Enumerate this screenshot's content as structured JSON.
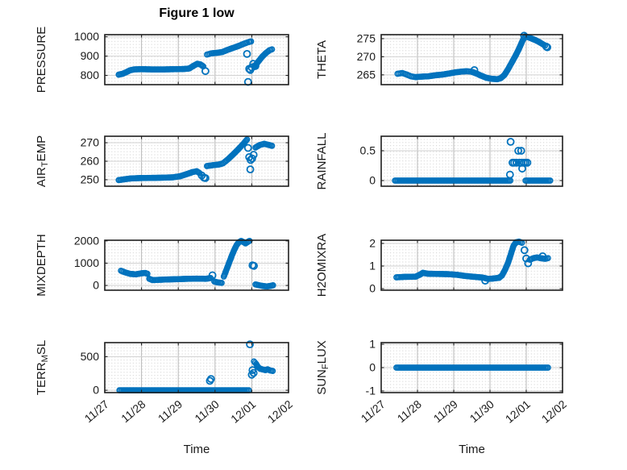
{
  "figure": {
    "title": "Figure 1 low",
    "xlabel": "Time",
    "accent_color": "#0072BD",
    "axis_color": "#1f1f1f",
    "text_color": "#1a1a1a",
    "grid_color_h": "#d2d2d2",
    "grid_color_v": "#b8b8b8",
    "minor_dot_color": "#d8d8d8",
    "x_tick_labels": [
      "11/27",
      "11/28",
      "11/29",
      "11/30",
      "12/01",
      "12/02"
    ],
    "x_tick_values": [
      0,
      1,
      2,
      3,
      4,
      5
    ],
    "xlim": [
      0,
      5
    ]
  },
  "chart_data": [
    {
      "id": "pressure",
      "type": "scatter",
      "ylabel": "PRESSURE",
      "ylabel_parts": [
        {
          "text": "PRESSURE",
          "sub": false
        }
      ],
      "ylim": [
        752,
        1011
      ],
      "yticks": [
        800,
        900,
        1000
      ],
      "ytick_labels": [
        "800",
        "900",
        "1000"
      ],
      "dense_segments": [
        [
          [
            0.38,
            804
          ],
          [
            0.48,
            808
          ],
          [
            0.58,
            816
          ],
          [
            0.68,
            826
          ],
          [
            0.8,
            831
          ],
          [
            1.0,
            832
          ],
          [
            1.3,
            831
          ],
          [
            1.6,
            831
          ],
          [
            1.9,
            832
          ],
          [
            2.15,
            833
          ],
          [
            2.3,
            836
          ],
          [
            2.42,
            850
          ],
          [
            2.52,
            860
          ],
          [
            2.6,
            857
          ],
          [
            2.68,
            847
          ]
        ],
        [
          [
            2.78,
            908
          ],
          [
            2.9,
            914
          ],
          [
            3.05,
            917
          ],
          [
            3.2,
            921
          ],
          [
            3.35,
            933
          ],
          [
            3.5,
            943
          ],
          [
            3.65,
            953
          ],
          [
            3.8,
            965
          ],
          [
            3.92,
            973
          ],
          [
            3.98,
            976
          ]
        ],
        [
          [
            4.07,
            843
          ],
          [
            4.17,
            870
          ],
          [
            4.28,
            896
          ],
          [
            4.38,
            915
          ],
          [
            4.48,
            930
          ],
          [
            4.55,
            935
          ]
        ]
      ],
      "scatter_points": [
        [
          2.74,
          822
        ],
        [
          3.87,
          911
        ],
        [
          3.9,
          766
        ],
        [
          3.93,
          834
        ],
        [
          3.96,
          828
        ],
        [
          4.0,
          841
        ],
        [
          4.04,
          860
        ],
        [
          4.1,
          849
        ]
      ]
    },
    {
      "id": "theta",
      "type": "scatter",
      "ylabel": "THETA",
      "ylabel_parts": [
        {
          "text": "THETA",
          "sub": false
        }
      ],
      "ylim": [
        262.3,
        276.1
      ],
      "yticks": [
        265,
        270,
        275
      ],
      "ytick_labels": [
        "265",
        "270",
        "275"
      ],
      "dense_segments": [
        [
          [
            0.45,
            265.3
          ],
          [
            0.58,
            265.5
          ],
          [
            0.7,
            265.1
          ],
          [
            0.82,
            264.6
          ],
          [
            0.95,
            264.4
          ],
          [
            1.1,
            264.5
          ],
          [
            1.3,
            264.6
          ],
          [
            1.5,
            264.9
          ],
          [
            1.7,
            265.1
          ],
          [
            1.88,
            265.4
          ],
          [
            2.05,
            265.7
          ],
          [
            2.2,
            265.9
          ],
          [
            2.35,
            266.0
          ],
          [
            2.48,
            265.9
          ],
          [
            2.62,
            265.4
          ],
          [
            2.75,
            264.8
          ],
          [
            2.9,
            264.2
          ],
          [
            3.05,
            263.9
          ],
          [
            3.2,
            263.8
          ],
          [
            3.3,
            264.1
          ],
          [
            3.4,
            265.0
          ],
          [
            3.5,
            266.6
          ],
          [
            3.6,
            268.4
          ],
          [
            3.7,
            270.2
          ],
          [
            3.8,
            272.2
          ],
          [
            3.9,
            274.5
          ],
          [
            3.97,
            275.6
          ],
          [
            4.05,
            275.4
          ],
          [
            4.15,
            275.0
          ],
          [
            4.25,
            274.6
          ],
          [
            4.35,
            274.1
          ],
          [
            4.45,
            273.5
          ],
          [
            4.52,
            273.1
          ]
        ]
      ],
      "scatter_points": [
        [
          2.57,
          266.3
        ],
        [
          3.94,
          275.8
        ],
        [
          4.55,
          272.8
        ],
        [
          4.58,
          272.6
        ]
      ]
    },
    {
      "id": "air-temp",
      "type": "scatter",
      "ylabel": "AIR_TEMP",
      "ylabel_parts": [
        {
          "text": "AIR",
          "sub": false
        },
        {
          "text": "T",
          "sub": true
        },
        {
          "text": "EMP",
          "sub": false
        }
      ],
      "ylim": [
        246.5,
        273.5
      ],
      "yticks": [
        250,
        260,
        270
      ],
      "ytick_labels": [
        "250",
        "260",
        "270"
      ],
      "dense_segments": [
        [
          [
            0.38,
            249.8
          ],
          [
            0.52,
            250.2
          ],
          [
            0.7,
            250.7
          ],
          [
            0.95,
            250.9
          ],
          [
            1.25,
            251.0
          ],
          [
            1.55,
            251.1
          ],
          [
            1.85,
            251.3
          ],
          [
            2.05,
            251.9
          ],
          [
            2.22,
            253.0
          ],
          [
            2.38,
            254.1
          ],
          [
            2.5,
            254.6
          ],
          [
            2.58,
            253.6
          ]
        ],
        [
          [
            2.78,
            257.4
          ],
          [
            2.95,
            257.9
          ],
          [
            3.1,
            258.2
          ],
          [
            3.22,
            258.9
          ],
          [
            3.35,
            261.0
          ],
          [
            3.5,
            263.8
          ],
          [
            3.65,
            266.8
          ],
          [
            3.78,
            269.6
          ],
          [
            3.87,
            271.7
          ]
        ],
        [
          [
            4.1,
            267.4
          ],
          [
            4.22,
            268.8
          ],
          [
            4.34,
            269.4
          ],
          [
            4.45,
            268.9
          ],
          [
            4.55,
            268.3
          ]
        ]
      ],
      "scatter_points": [
        [
          2.64,
          252.3
        ],
        [
          2.7,
          251.1
        ],
        [
          2.74,
          250.9
        ],
        [
          3.9,
          267.2
        ],
        [
          3.93,
          262.2
        ],
        [
          3.97,
          260.7
        ],
        [
          4.01,
          261.5
        ],
        [
          4.05,
          263.5
        ],
        [
          3.96,
          255.6
        ]
      ]
    },
    {
      "id": "rainfall",
      "type": "scatter",
      "ylabel": "RAINFALL",
      "ylabel_parts": [
        {
          "text": "RAINFALL",
          "sub": false
        }
      ],
      "ylim": [
        -0.095,
        0.743
      ],
      "yticks": [
        0,
        0.5
      ],
      "ytick_labels": [
        "0",
        "0.5"
      ],
      "dense_segments": [
        [
          [
            0.38,
            0
          ],
          [
            3.56,
            0
          ]
        ],
        [
          [
            3.98,
            0
          ],
          [
            4.66,
            0
          ]
        ]
      ],
      "scatter_points": [
        [
          3.55,
          0.1
        ],
        [
          3.57,
          0.65
        ],
        [
          3.62,
          0.3
        ],
        [
          3.67,
          0.3
        ],
        [
          3.73,
          0.3
        ],
        [
          3.78,
          0.5
        ],
        [
          3.81,
          0.3
        ],
        [
          3.86,
          0.5
        ],
        [
          3.87,
          0.3
        ],
        [
          3.89,
          0.2
        ],
        [
          3.93,
          0.3
        ],
        [
          3.98,
          0.3
        ],
        [
          4.03,
          0.3
        ]
      ]
    },
    {
      "id": "mixdepth",
      "type": "scatter",
      "ylabel": "MIXDEPTH",
      "ylabel_parts": [
        {
          "text": "MIXDEPTH",
          "sub": false
        }
      ],
      "ylim": [
        -215,
        2030
      ],
      "yticks": [
        0,
        1000,
        2000
      ],
      "ytick_labels": [
        "0",
        "1000",
        "2000"
      ],
      "dense_segments": [
        [
          [
            0.44,
            660
          ],
          [
            0.55,
            590
          ],
          [
            0.7,
            515
          ],
          [
            0.85,
            500
          ],
          [
            1.0,
            545
          ],
          [
            1.1,
            560
          ],
          [
            1.16,
            525
          ]
        ],
        [
          [
            1.21,
            300
          ],
          [
            1.3,
            240
          ],
          [
            1.5,
            255
          ],
          [
            1.72,
            270
          ],
          [
            1.95,
            280
          ],
          [
            2.2,
            295
          ],
          [
            2.5,
            305
          ],
          [
            2.75,
            300
          ],
          [
            2.88,
            330
          ]
        ],
        [
          [
            2.98,
            175
          ],
          [
            3.08,
            135
          ],
          [
            3.18,
            115
          ]
        ],
        [
          [
            3.24,
            400
          ],
          [
            3.31,
            700
          ],
          [
            3.38,
            1000
          ],
          [
            3.46,
            1350
          ],
          [
            3.53,
            1620
          ],
          [
            3.59,
            1820
          ],
          [
            3.65,
            1940
          ],
          [
            3.71,
            2000
          ],
          [
            3.77,
            1950
          ],
          [
            3.83,
            1890
          ],
          [
            3.89,
            1955
          ],
          [
            3.94,
            2000
          ]
        ],
        [
          [
            4.1,
            45
          ],
          [
            4.2,
            10
          ],
          [
            4.32,
            -30
          ],
          [
            4.42,
            -45
          ],
          [
            4.52,
            -15
          ],
          [
            4.58,
            5
          ]
        ]
      ],
      "scatter_points": [
        [
          2.93,
          455
        ],
        [
          4.02,
          905
        ],
        [
          4.06,
          880
        ]
      ]
    },
    {
      "id": "h2omixra",
      "type": "scatter",
      "ylabel": "H2OMIXRA",
      "ylabel_parts": [
        {
          "text": "H2OMIXRA",
          "sub": false
        }
      ],
      "ylim": [
        -0.07,
        2.14
      ],
      "yticks": [
        0,
        1,
        2
      ],
      "ytick_labels": [
        "0",
        "1",
        "2"
      ],
      "dense_segments": [
        [
          [
            0.42,
            0.5
          ],
          [
            0.65,
            0.52
          ],
          [
            0.95,
            0.53
          ],
          [
            1.08,
            0.63
          ],
          [
            1.15,
            0.7
          ],
          [
            1.28,
            0.66
          ],
          [
            1.55,
            0.65
          ],
          [
            1.85,
            0.64
          ],
          [
            2.1,
            0.61
          ],
          [
            2.32,
            0.56
          ],
          [
            2.58,
            0.52
          ],
          [
            2.8,
            0.49
          ],
          [
            2.95,
            0.43
          ],
          [
            3.1,
            0.45
          ],
          [
            3.25,
            0.48
          ],
          [
            3.33,
            0.58
          ],
          [
            3.42,
            0.85
          ],
          [
            3.5,
            1.15
          ],
          [
            3.58,
            1.55
          ],
          [
            3.65,
            1.9
          ],
          [
            3.72,
            2.05
          ],
          [
            3.8,
            2.08
          ],
          [
            3.88,
            2.03
          ]
        ],
        [
          [
            4.1,
            1.28
          ],
          [
            4.2,
            1.35
          ],
          [
            4.3,
            1.38
          ],
          [
            4.42,
            1.34
          ],
          [
            4.52,
            1.32
          ],
          [
            4.6,
            1.35
          ]
        ]
      ],
      "scatter_points": [
        [
          2.87,
          0.35
        ],
        [
          3.95,
          1.7
        ],
        [
          4.0,
          1.33
        ],
        [
          4.05,
          1.12
        ],
        [
          4.45,
          1.43
        ]
      ]
    },
    {
      "id": "terr-msl",
      "type": "scatter",
      "ylabel": "TERR_MSL",
      "ylabel_parts": [
        {
          "text": "TERR",
          "sub": false
        },
        {
          "text": "M",
          "sub": true
        },
        {
          "text": "SL",
          "sub": false
        }
      ],
      "ylim": [
        -35,
        710
      ],
      "yticks": [
        0,
        500
      ],
      "ytick_labels": [
        "0",
        "500"
      ],
      "dense_segments": [
        [
          [
            0.4,
            0
          ],
          [
            3.92,
            0
          ]
        ],
        [
          [
            4.06,
            430
          ],
          [
            4.12,
            392
          ],
          [
            4.17,
            345
          ],
          [
            4.23,
            320
          ],
          [
            4.3,
            310
          ],
          [
            4.37,
            300
          ],
          [
            4.43,
            312
          ],
          [
            4.5,
            296
          ],
          [
            4.57,
            288
          ]
        ]
      ],
      "scatter_points": [
        [
          2.86,
          140
        ],
        [
          2.89,
          168
        ],
        [
          3.95,
          685
        ],
        [
          4.0,
          232
        ],
        [
          4.02,
          300
        ],
        [
          4.05,
          258
        ]
      ]
    },
    {
      "id": "sun-flux",
      "type": "scatter",
      "ylabel": "SUN_FLUX",
      "ylabel_parts": [
        {
          "text": "SUN",
          "sub": false
        },
        {
          "text": "F",
          "sub": true
        },
        {
          "text": "LUX",
          "sub": false
        }
      ],
      "ylim": [
        -1.07,
        1.07
      ],
      "yticks": [
        -1,
        0,
        1
      ],
      "ytick_labels": [
        "-1",
        "0",
        "1"
      ],
      "dense_segments": [
        [
          [
            0.42,
            0
          ],
          [
            4.6,
            0
          ]
        ]
      ],
      "scatter_points": []
    }
  ]
}
